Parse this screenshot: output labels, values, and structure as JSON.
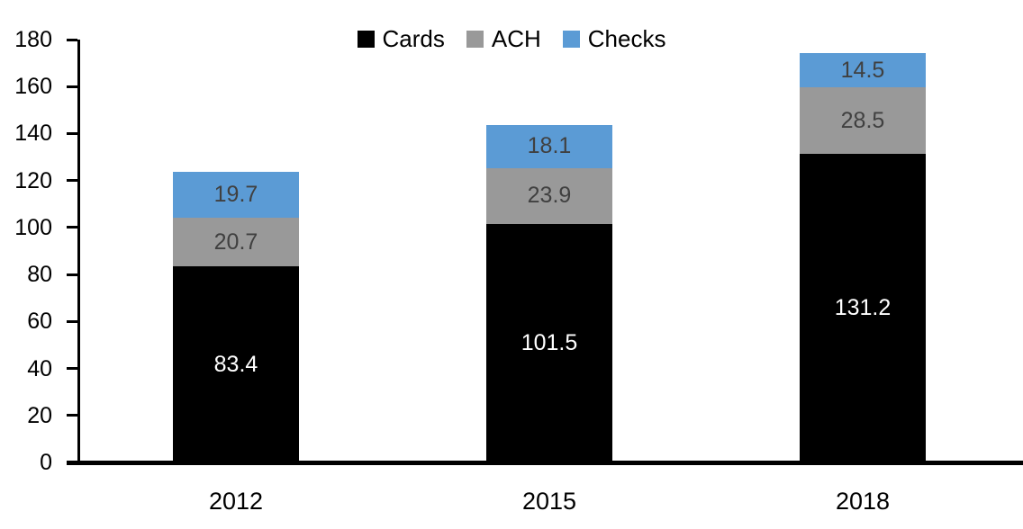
{
  "chart_data": {
    "type": "bar",
    "stacked": true,
    "title": "",
    "xlabel": "",
    "ylabel": "",
    "categories": [
      "2012",
      "2015",
      "2018"
    ],
    "series": [
      {
        "name": "Cards",
        "color": "#000000",
        "label_color": "#FFFFFF",
        "values": [
          83.4,
          101.5,
          131.2
        ]
      },
      {
        "name": "ACH",
        "color": "#999999",
        "label_color": "#404040",
        "values": [
          20.7,
          23.9,
          28.5
        ]
      },
      {
        "name": "Checks",
        "color": "#5B9BD5",
        "label_color": "#404040",
        "values": [
          19.7,
          18.1,
          14.5
        ]
      }
    ],
    "totals": [
      123.8,
      143.5,
      174.2
    ],
    "ylim": [
      0,
      180
    ],
    "ytick_step": 20,
    "grid": false,
    "legend_position": "top-center",
    "value_decimals": 1
  }
}
